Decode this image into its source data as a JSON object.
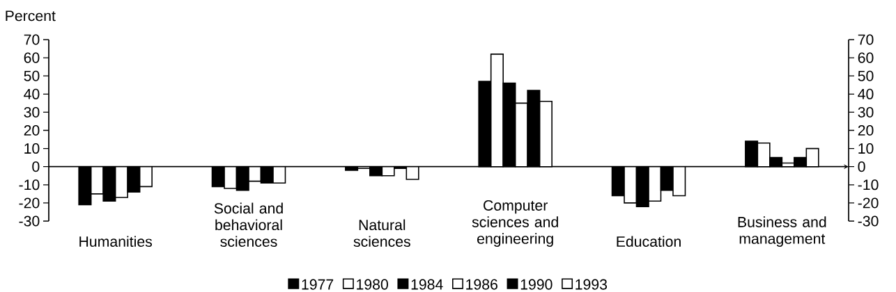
{
  "chart_data": {
    "type": "bar",
    "ylabel": "Percent",
    "categories": [
      "Humanities",
      "Social and behavioral sciences",
      "Natural sciences",
      "Computer sciences and engineering",
      "Education",
      "Business and management"
    ],
    "series": [
      {
        "name": "1977",
        "color": "#000000",
        "values": [
          -21,
          -11,
          -2,
          47,
          -16,
          14
        ]
      },
      {
        "name": "1980",
        "color": "#ffffff",
        "values": [
          -15,
          -12,
          -1,
          62,
          -20,
          13
        ]
      },
      {
        "name": "1984",
        "color": "#000000",
        "values": [
          -19,
          -13,
          -5,
          46,
          -22,
          5
        ]
      },
      {
        "name": "1986",
        "color": "#ffffff",
        "values": [
          -17,
          -8,
          -5,
          35,
          -19,
          2
        ]
      },
      {
        "name": "1990",
        "color": "#000000",
        "values": [
          -14,
          -9,
          -1,
          42,
          -13,
          5
        ]
      },
      {
        "name": "1993",
        "color": "#ffffff",
        "values": [
          -11,
          -9,
          -7,
          36,
          -16,
          10
        ]
      }
    ],
    "ylim": [
      -30,
      70
    ],
    "yticks": [
      -30,
      -20,
      -10,
      0,
      10,
      20,
      30,
      40,
      50,
      60,
      70
    ],
    "y2lim": [
      -30,
      70
    ],
    "y2ticks": [
      -30,
      -20,
      -10,
      0,
      10,
      20,
      30,
      40,
      50,
      60,
      70
    ],
    "legend": "bottom"
  }
}
